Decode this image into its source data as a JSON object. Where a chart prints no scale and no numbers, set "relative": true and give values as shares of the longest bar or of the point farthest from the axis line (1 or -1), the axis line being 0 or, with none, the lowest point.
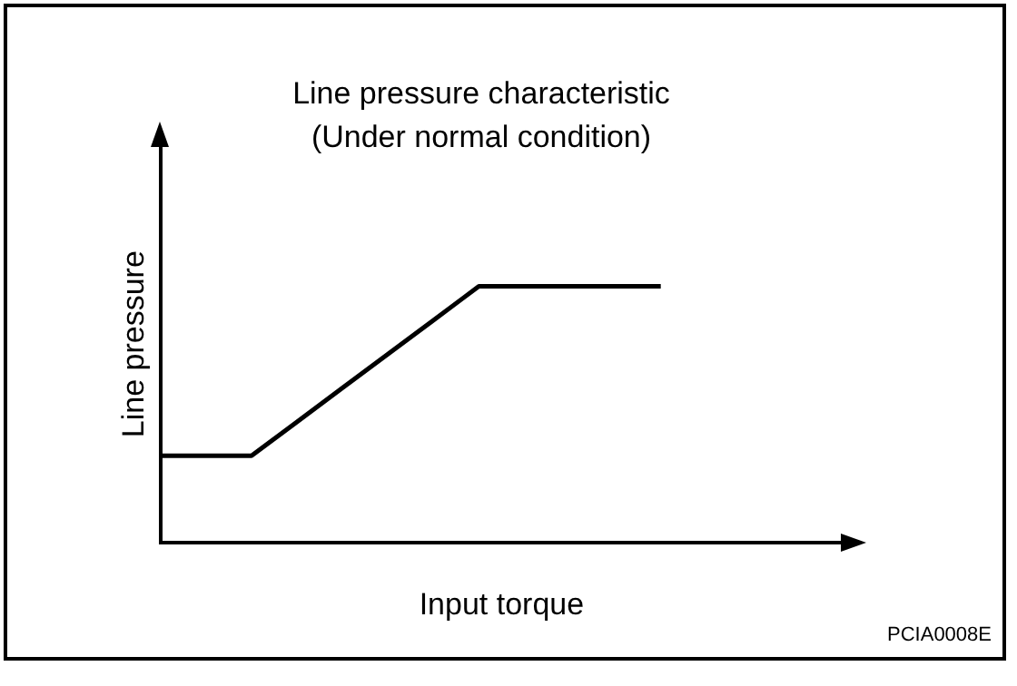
{
  "chart_data": {
    "type": "line",
    "title": "Line pressure characteristic",
    "subtitle": "(Under normal condition)",
    "xlabel": "Input torque",
    "ylabel": "Line pressure",
    "annotations": [
      "PCIA0008E"
    ],
    "categories": [
      null,
      null,
      null,
      null,
      null,
      null,
      null,
      null,
      null,
      null,
      null,
      null,
      null,
      null,
      null,
      null
    ],
    "series": [
      {
        "color": "#000000",
        "values": [
          0.34,
          0.34,
          0.34,
          0.472,
          0.604,
          0.736,
          0.868,
          1,
          1,
          1,
          1,
          1,
          null,
          null,
          null,
          null
        ]
      }
    ],
    "relative": true,
    "legend": false,
    "grid": false,
    "marker": "none",
    "line_style": "solid"
  }
}
